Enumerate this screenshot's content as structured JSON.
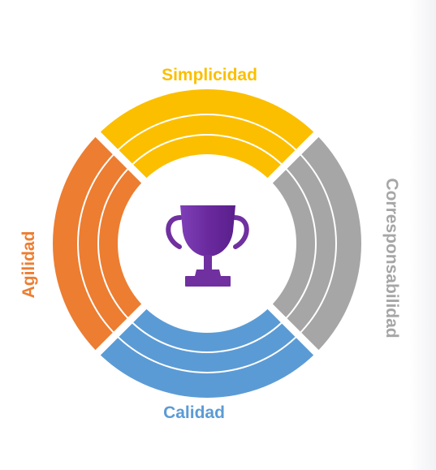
{
  "diagram": {
    "labels": {
      "top": "Simplicidad",
      "right": "Corresponsabilidad",
      "bottom": "Calidad",
      "left": "Agilidad"
    },
    "colors": {
      "top": "#fbbf00",
      "right": "#a6a6a6",
      "bottom": "#5b9bd5",
      "left": "#ed7d31",
      "center_icon": "#7030a0"
    },
    "segments_per_quadrant": 3,
    "center_icon": "trophy-icon"
  }
}
